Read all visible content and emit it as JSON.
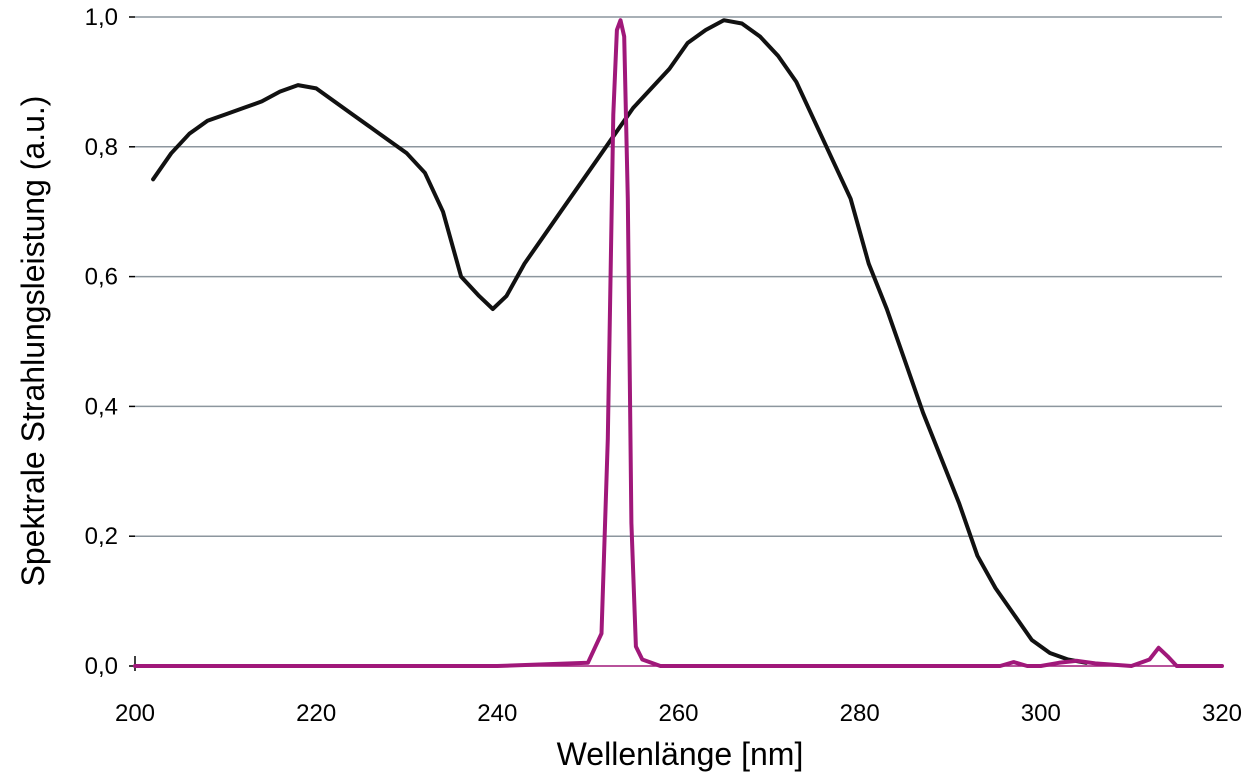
{
  "chart_data": {
    "type": "line",
    "title": "",
    "xlabel": "Wellenlänge [nm]",
    "ylabel": "Spektrale Strahlungsleistung (a.u.)",
    "xlim": [
      200,
      320
    ],
    "ylim": [
      0,
      1.0
    ],
    "xticks": [
      200,
      220,
      240,
      260,
      280,
      300,
      320
    ],
    "xtick_labels": [
      "200",
      "220",
      "240",
      "260",
      "280",
      "300",
      "320"
    ],
    "yticks": [
      0,
      0.2,
      0.4,
      0.6,
      0.8,
      1.0
    ],
    "ytick_labels": [
      "0,0",
      "0,2",
      "0,4",
      "0,6",
      "0,8",
      "1,0"
    ],
    "grid": "horizontal",
    "colors": {
      "grid": "#8c969e",
      "black_curve": "#111111",
      "magenta_curve": "#a0187a"
    },
    "series": [
      {
        "color": "#111111",
        "x": [
          202,
          204,
          206,
          208,
          210,
          212,
          214,
          216,
          218,
          220,
          222,
          224,
          226,
          228,
          230,
          232,
          234,
          236,
          238,
          239.5,
          241,
          243,
          245,
          247,
          249,
          251,
          253,
          255,
          257,
          259,
          261,
          263,
          265,
          267,
          269,
          271,
          273,
          275,
          277,
          279,
          281,
          283,
          285,
          287,
          289,
          291,
          293,
          295,
          297,
          299,
          301,
          303,
          305
        ],
        "y": [
          0.75,
          0.79,
          0.82,
          0.84,
          0.85,
          0.86,
          0.87,
          0.885,
          0.895,
          0.89,
          0.87,
          0.85,
          0.83,
          0.81,
          0.79,
          0.76,
          0.7,
          0.6,
          0.57,
          0.55,
          0.57,
          0.62,
          0.66,
          0.7,
          0.74,
          0.78,
          0.82,
          0.86,
          0.89,
          0.92,
          0.96,
          0.98,
          0.995,
          0.99,
          0.97,
          0.94,
          0.9,
          0.84,
          0.78,
          0.72,
          0.62,
          0.55,
          0.47,
          0.39,
          0.32,
          0.25,
          0.17,
          0.12,
          0.08,
          0.04,
          0.02,
          0.01,
          0.005
        ]
      },
      {
        "color": "#a0187a",
        "x": [
          200,
          210,
          220,
          230,
          240,
          250,
          251.5,
          252.2,
          252.8,
          253.2,
          253.6,
          254.0,
          254.4,
          254.8,
          255.3,
          256,
          258,
          270,
          280,
          290,
          295.5,
          297,
          298.5,
          300,
          302,
          304,
          306,
          310,
          312,
          313,
          314,
          315,
          320
        ],
        "y": [
          0,
          0,
          0,
          0,
          0,
          0.005,
          0.05,
          0.35,
          0.85,
          0.98,
          0.995,
          0.97,
          0.72,
          0.22,
          0.03,
          0.01,
          0,
          0,
          0,
          0,
          0,
          0.006,
          0,
          0,
          0.005,
          0.008,
          0.004,
          0,
          0.01,
          0.028,
          0.015,
          0,
          0
        ]
      }
    ]
  }
}
